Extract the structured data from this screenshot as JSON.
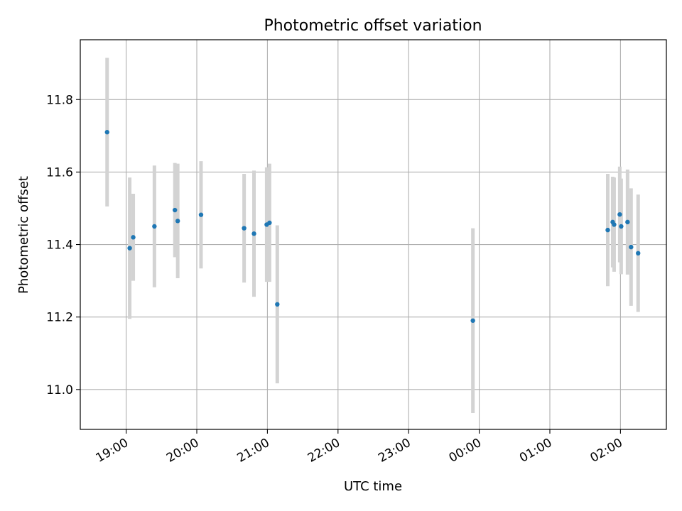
{
  "chart_data": {
    "type": "scatter",
    "title": "Photometric offset variation",
    "xlabel": "UTC time",
    "ylabel": "Photometric offset",
    "x_unit": "hours",
    "xlim": [
      18.35,
      26.65
    ],
    "ylim": [
      10.89,
      11.965
    ],
    "x_ticks": [
      19,
      20,
      21,
      22,
      23,
      24,
      25,
      26
    ],
    "x_tick_labels": [
      "19:00",
      "20:00",
      "21:00",
      "22:00",
      "23:00",
      "00:00",
      "01:00",
      "02:00"
    ],
    "y_ticks": [
      11.0,
      11.2,
      11.4,
      11.6,
      11.8
    ],
    "y_tick_labels": [
      "11.0",
      "11.2",
      "11.4",
      "11.6",
      "11.8"
    ],
    "grid": true,
    "colors": {
      "point": "#1f77b4",
      "errorbar": "#d3d3d3",
      "grid": "#b0b0b0"
    },
    "points": [
      {
        "x": 18.73,
        "y": 11.71,
        "err": 0.205
      },
      {
        "x": 19.05,
        "y": 11.39,
        "err": 0.195
      },
      {
        "x": 19.1,
        "y": 11.42,
        "err": 0.12
      },
      {
        "x": 19.4,
        "y": 11.45,
        "err": 0.168
      },
      {
        "x": 19.69,
        "y": 11.495,
        "err": 0.13
      },
      {
        "x": 19.73,
        "y": 11.465,
        "err": 0.158
      },
      {
        "x": 20.06,
        "y": 11.482,
        "err": 0.148
      },
      {
        "x": 20.67,
        "y": 11.445,
        "err": 0.15
      },
      {
        "x": 20.81,
        "y": 11.43,
        "err": 0.174
      },
      {
        "x": 20.99,
        "y": 11.455,
        "err": 0.158
      },
      {
        "x": 21.03,
        "y": 11.46,
        "err": 0.163
      },
      {
        "x": 21.14,
        "y": 11.235,
        "err": 0.218
      },
      {
        "x": 23.91,
        "y": 11.19,
        "err": 0.255
      },
      {
        "x": 25.82,
        "y": 11.44,
        "err": 0.155
      },
      {
        "x": 25.89,
        "y": 11.462,
        "err": 0.125
      },
      {
        "x": 25.91,
        "y": 11.455,
        "err": 0.13
      },
      {
        "x": 25.99,
        "y": 11.483,
        "err": 0.132
      },
      {
        "x": 26.01,
        "y": 11.45,
        "err": 0.132
      },
      {
        "x": 26.1,
        "y": 11.462,
        "err": 0.145
      },
      {
        "x": 26.15,
        "y": 11.393,
        "err": 0.162
      },
      {
        "x": 26.25,
        "y": 11.376,
        "err": 0.162
      }
    ]
  }
}
